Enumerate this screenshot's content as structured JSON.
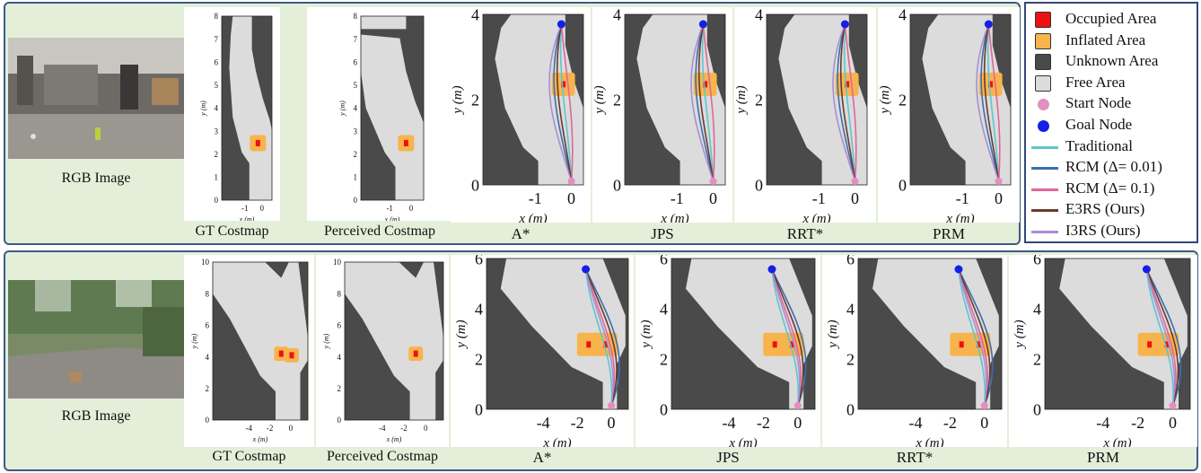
{
  "rows": [
    {
      "photo_caption": "RGB Image",
      "costmaps": [
        {
          "caption": "GT Costmap",
          "xlabel": "x (m)",
          "ylabel": "y (m)",
          "xticks": [
            "-1",
            "0"
          ],
          "yticks": [
            "0",
            "1",
            "2",
            "3",
            "4",
            "5",
            "6",
            "7",
            "8"
          ]
        },
        {
          "caption": "Perceived Costmap",
          "xlabel": "x (m)",
          "ylabel": "y (m)",
          "xticks": [
            "-1",
            "0"
          ],
          "yticks": [
            "0",
            "1",
            "2",
            "3",
            "4",
            "5",
            "6",
            "7",
            "8"
          ]
        }
      ],
      "planners": [
        {
          "caption": "A*",
          "xlabel": "x (m)",
          "ylabel": "y (m)",
          "xticks": [
            "-1",
            "0"
          ],
          "yticks": [
            "0",
            "2",
            "4"
          ]
        },
        {
          "caption": "JPS",
          "xlabel": "x (m)",
          "ylabel": "y (m)",
          "xticks": [
            "-1",
            "0"
          ],
          "yticks": [
            "0",
            "2",
            "4"
          ]
        },
        {
          "caption": "RRT*",
          "xlabel": "x (m)",
          "ylabel": "y (m)",
          "xticks": [
            "-1",
            "0"
          ],
          "yticks": [
            "0",
            "2",
            "4"
          ]
        },
        {
          "caption": "PRM",
          "xlabel": "x (m)",
          "ylabel": "y (m)",
          "xticks": [
            "-1",
            "0"
          ],
          "yticks": [
            "0",
            "2",
            "4"
          ]
        }
      ]
    },
    {
      "photo_caption": "RGB Image",
      "costmaps": [
        {
          "caption": "GT Costmap",
          "xlabel": "x (m)",
          "ylabel": "y (m)",
          "xticks": [
            "-4",
            "-2",
            "0"
          ],
          "yticks": [
            "0",
            "2",
            "4",
            "6",
            "8",
            "10"
          ]
        },
        {
          "caption": "Perceived Costmap",
          "xlabel": "x (m)",
          "ylabel": "y (m)",
          "xticks": [
            "-4",
            "-2",
            "0"
          ],
          "yticks": [
            "0",
            "2",
            "4",
            "6",
            "8",
            "10"
          ]
        }
      ],
      "planners": [
        {
          "caption": "A*",
          "xlabel": "x (m)",
          "ylabel": "y (m)",
          "xticks": [
            "-4",
            "-2",
            "0"
          ],
          "yticks": [
            "0",
            "2",
            "4",
            "6"
          ]
        },
        {
          "caption": "JPS",
          "xlabel": "x (m)",
          "ylabel": "y (m)",
          "xticks": [
            "-4",
            "-2",
            "0"
          ],
          "yticks": [
            "0",
            "2",
            "4",
            "6"
          ]
        },
        {
          "caption": "RRT*",
          "xlabel": "x (m)",
          "ylabel": "y (m)",
          "xticks": [
            "-4",
            "-2",
            "0"
          ],
          "yticks": [
            "0",
            "2",
            "4",
            "6"
          ]
        },
        {
          "caption": "PRM",
          "xlabel": "x (m)",
          "ylabel": "y (m)",
          "xticks": [
            "-4",
            "-2",
            "0"
          ],
          "yticks": [
            "0",
            "2",
            "4",
            "6"
          ]
        }
      ]
    }
  ],
  "legend": {
    "items": [
      {
        "label": "Occupied Area",
        "kind": "square",
        "color": "#ee1111"
      },
      {
        "label": "Inflated Area",
        "kind": "square",
        "color": "#f8b44c"
      },
      {
        "label": "Unknown Area",
        "kind": "square",
        "color": "#4a4a4a"
      },
      {
        "label": "Free Area",
        "kind": "square",
        "color": "#dcdcdc"
      },
      {
        "label": "Start Node",
        "kind": "dot",
        "color": "#e38fc0"
      },
      {
        "label": "Goal Node",
        "kind": "dot",
        "color": "#1420e6"
      },
      {
        "label": "Traditional",
        "kind": "line",
        "color": "#5cc6d0"
      },
      {
        "label": "RCM (Δ= 0.01)",
        "kind": "line",
        "color": "#3a6fb0"
      },
      {
        "label": "RCM (Δ= 0.1)",
        "kind": "line",
        "color": "#e0669a"
      },
      {
        "label": "E3RS (Ours)",
        "kind": "line",
        "color": "#6b3a2a"
      },
      {
        "label": "I3RS (Ours)",
        "kind": "line",
        "color": "#a98fd4"
      }
    ]
  },
  "colors": {
    "unknown": "#4a4a4a",
    "free": "#dcdcdc",
    "inflated": "#f8b44c",
    "occupied": "#ee1111",
    "start": "#e38fc0",
    "goal": "#1420e6",
    "panel_bg": "#e4efd9",
    "panel_border": "#3c5a86"
  }
}
